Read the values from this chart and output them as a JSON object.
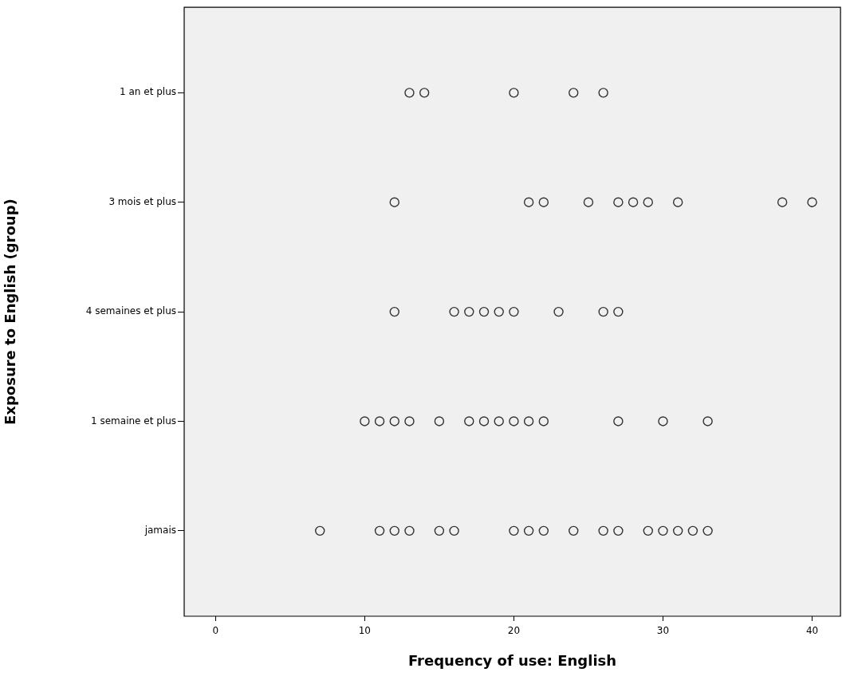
{
  "chart_data": {
    "type": "scatter",
    "xlabel": "Frequency of use: English",
    "ylabel": "Exposure to English (group)",
    "orientation": "horizontal",
    "categories": [
      "1 an et plus",
      "3 mois et plus",
      "4 semaines et plus",
      "1 semaine et plus",
      "jamais"
    ],
    "series": [
      {
        "color": "#333333",
        "values": [
          13,
          12,
          12,
          10,
          7
        ]
      },
      {
        "color": "#333333",
        "values": [
          14,
          21,
          16,
          11,
          11
        ]
      },
      {
        "color": "#333333",
        "values": [
          20,
          22,
          17,
          12,
          12
        ]
      },
      {
        "color": "#333333",
        "values": [
          24,
          25,
          18,
          13,
          13
        ]
      },
      {
        "color": "#333333",
        "values": [
          26,
          27,
          19,
          15,
          15
        ]
      },
      {
        "color": "#333333",
        "values": [
          null,
          28,
          20,
          17,
          16
        ]
      },
      {
        "color": "#333333",
        "values": [
          null,
          29,
          23,
          18,
          20
        ]
      },
      {
        "color": "#333333",
        "values": [
          null,
          31,
          26,
          19,
          21
        ]
      },
      {
        "color": "#333333",
        "values": [
          null,
          38,
          27,
          20,
          22
        ]
      },
      {
        "color": "#333333",
        "values": [
          null,
          40,
          null,
          21,
          24
        ]
      },
      {
        "color": "#333333",
        "values": [
          null,
          null,
          null,
          22,
          26
        ]
      },
      {
        "color": "#333333",
        "values": [
          null,
          null,
          null,
          27,
          27
        ]
      },
      {
        "color": "#333333",
        "values": [
          null,
          null,
          null,
          30,
          29
        ]
      },
      {
        "color": "#333333",
        "values": [
          null,
          null,
          null,
          33,
          30
        ]
      },
      {
        "color": "#333333",
        "values": [
          null,
          null,
          null,
          null,
          31
        ]
      },
      {
        "color": "#333333",
        "values": [
          null,
          null,
          null,
          null,
          32
        ]
      },
      {
        "color": "#333333",
        "values": [
          null,
          null,
          null,
          null,
          33
        ]
      }
    ],
    "xlim": [
      -2.1,
      41.9
    ],
    "xticks": [
      0,
      10,
      20,
      30,
      40
    ],
    "grid": false,
    "legend": false,
    "marker": "circle"
  }
}
